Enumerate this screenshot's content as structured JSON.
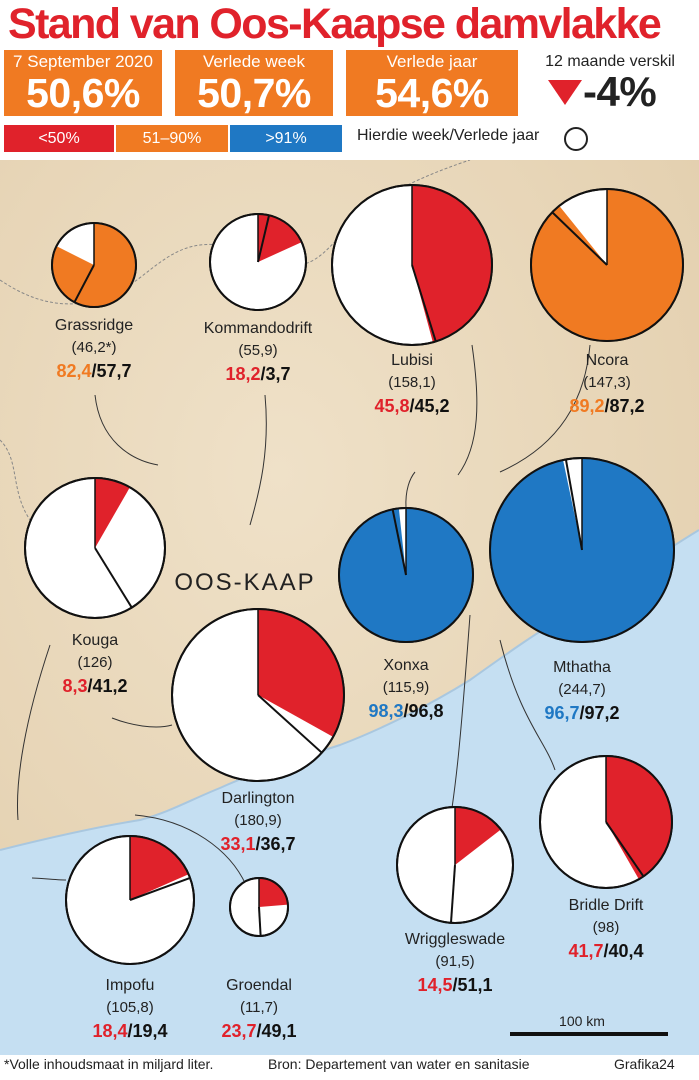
{
  "title": "Stand van Oos-Kaapse damvlakke",
  "stats": [
    {
      "label": "7 September 2020",
      "value": "50,6%"
    },
    {
      "label": "Verlede week",
      "value": "50,7%"
    },
    {
      "label": "Verlede jaar",
      "value": "54,6%"
    }
  ],
  "change": {
    "label": "12 maande verskil",
    "value": "-4%",
    "direction": "down"
  },
  "legend": {
    "bands": [
      {
        "label": "<50%",
        "color": "#e0222b"
      },
      {
        "label": "51–90%",
        "color": "#f07a22"
      },
      {
        "label": ">91%",
        "color": "#1f78c4"
      }
    ],
    "comparison_label": "Hierdie week/Verlede jaar"
  },
  "map": {
    "region_label": "OOS-KAAP",
    "scale_label": "100 km"
  },
  "chart_data": {
    "type": "pie",
    "value_unit": "%",
    "capacity_note": "*Volle inhoudsmaat in miljard liter.",
    "dams": [
      {
        "name": "Grassridge",
        "capacity": "(46,2*)",
        "this_week": 82.4,
        "last_year": 57.7,
        "this_week_label": "82,4",
        "last_year_label": "57,7",
        "band": "orange"
      },
      {
        "name": "Kommandodrift",
        "capacity": "(55,9)",
        "this_week": 18.2,
        "last_year": 3.7,
        "this_week_label": "18,2",
        "last_year_label": "3,7",
        "band": "red"
      },
      {
        "name": "Lubisi",
        "capacity": "(158,1)",
        "this_week": 45.8,
        "last_year": 45.2,
        "this_week_label": "45,8",
        "last_year_label": "45,2",
        "band": "red"
      },
      {
        "name": "Ncora",
        "capacity": "(147,3)",
        "this_week": 89.2,
        "last_year": 87.2,
        "this_week_label": "89,2",
        "last_year_label": "87,2",
        "band": "orange"
      },
      {
        "name": "Kouga",
        "capacity": "(126)",
        "this_week": 8.3,
        "last_year": 41.2,
        "this_week_label": "8,3",
        "last_year_label": "41,2",
        "band": "red"
      },
      {
        "name": "Xonxa",
        "capacity": "(115,9)",
        "this_week": 98.3,
        "last_year": 96.8,
        "this_week_label": "98,3",
        "last_year_label": "96,8",
        "band": "blue"
      },
      {
        "name": "Mthatha",
        "capacity": "(244,7)",
        "this_week": 96.7,
        "last_year": 97.2,
        "this_week_label": "96,7",
        "last_year_label": "97,2",
        "band": "blue"
      },
      {
        "name": "Darlington",
        "capacity": "(180,9)",
        "this_week": 33.1,
        "last_year": 36.7,
        "this_week_label": "33,1",
        "last_year_label": "36,7",
        "band": "red"
      },
      {
        "name": "Wriggleswade",
        "capacity": "(91,5)",
        "this_week": 14.5,
        "last_year": 51.1,
        "this_week_label": "14,5",
        "last_year_label": "51,1",
        "band": "red"
      },
      {
        "name": "Bridle Drift",
        "capacity": "(98)",
        "this_week": 41.7,
        "last_year": 40.4,
        "this_week_label": "41,7",
        "last_year_label": "40,4",
        "band": "red"
      },
      {
        "name": "Impofu",
        "capacity": "(105,8)",
        "this_week": 18.4,
        "last_year": 19.4,
        "this_week_label": "18,4",
        "last_year_label": "19,4",
        "band": "red"
      },
      {
        "name": "Groendal",
        "capacity": "(11,7)",
        "this_week": 23.7,
        "last_year": 49.1,
        "this_week_label": "23,7",
        "last_year_label": "49,1",
        "band": "red"
      }
    ]
  },
  "footer": {
    "note": "*Volle inhoudsmaat in miljard liter.",
    "source": "Bron: Departement van water en sanitasie",
    "credit": "Grafika24"
  }
}
